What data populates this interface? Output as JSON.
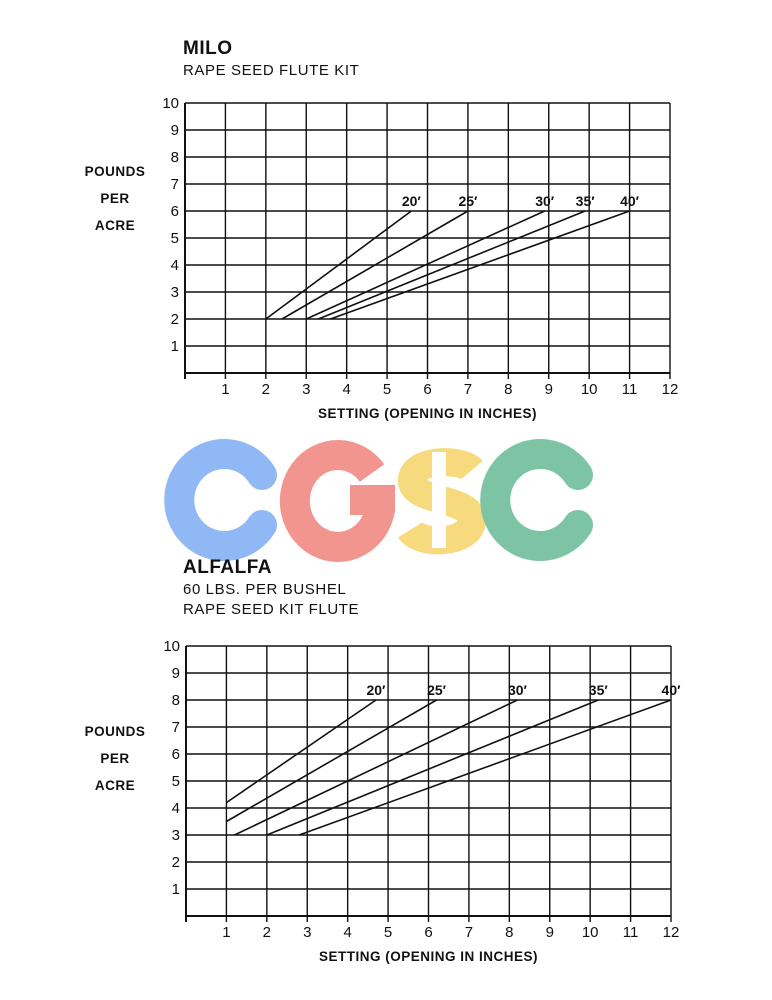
{
  "chart_data": [
    {
      "type": "line",
      "title": "MILO",
      "subtitle": "RAPE SEED FLUTE KIT",
      "ylabel": [
        "POUNDS",
        "PER",
        "ACRE"
      ],
      "xlabel": "SETTING (OPENING IN INCHES)",
      "xlim": [
        0,
        12
      ],
      "ylim": [
        0,
        10
      ],
      "x_ticks": [
        1,
        2,
        3,
        4,
        5,
        6,
        7,
        8,
        9,
        10,
        11,
        12
      ],
      "y_ticks": [
        1,
        2,
        3,
        4,
        5,
        6,
        7,
        8,
        9,
        10
      ],
      "grid": true,
      "series": [
        {
          "name": "20′",
          "points": [
            [
              2,
              2
            ],
            [
              5.6,
              6
            ]
          ]
        },
        {
          "name": "25′",
          "points": [
            [
              2.4,
              2
            ],
            [
              7,
              6
            ]
          ]
        },
        {
          "name": "30′",
          "points": [
            [
              3,
              2
            ],
            [
              8.9,
              6
            ]
          ]
        },
        {
          "name": "35′",
          "points": [
            [
              3.3,
              2
            ],
            [
              9.9,
              6
            ]
          ]
        },
        {
          "name": "40′",
          "points": [
            [
              3.6,
              2
            ],
            [
              11,
              6
            ]
          ]
        }
      ]
    },
    {
      "type": "line",
      "title": "ALFALFA",
      "subtitle": [
        "60 LBS. PER BUSHEL",
        "RAPE SEED KIT FLUTE"
      ],
      "ylabel": [
        "POUNDS",
        "PER",
        "ACRE"
      ],
      "xlabel": "SETTING (OPENING IN INCHES)",
      "xlim": [
        0,
        12
      ],
      "ylim": [
        0,
        10
      ],
      "x_ticks": [
        1,
        2,
        3,
        4,
        5,
        6,
        7,
        8,
        9,
        10,
        11,
        12
      ],
      "y_ticks": [
        1,
        2,
        3,
        4,
        5,
        6,
        7,
        8,
        9,
        10
      ],
      "grid": true,
      "series": [
        {
          "name": "20′",
          "points": [
            [
              1,
              4.2
            ],
            [
              4.7,
              8
            ]
          ]
        },
        {
          "name": "25′",
          "points": [
            [
              1,
              3.5
            ],
            [
              6.2,
              8
            ]
          ]
        },
        {
          "name": "30′",
          "points": [
            [
              1.2,
              3
            ],
            [
              8.2,
              8
            ]
          ]
        },
        {
          "name": "35′",
          "points": [
            [
              2,
              3
            ],
            [
              10.2,
              8
            ]
          ]
        },
        {
          "name": "40′",
          "points": [
            [
              2.8,
              3
            ],
            [
              12,
              8
            ]
          ]
        }
      ]
    }
  ],
  "watermark": {
    "letters": [
      "C",
      "G",
      "S",
      "C"
    ],
    "colors": [
      "#8fb8f5",
      "#f2958f",
      "#f8da7e",
      "#7cc4a4"
    ]
  }
}
